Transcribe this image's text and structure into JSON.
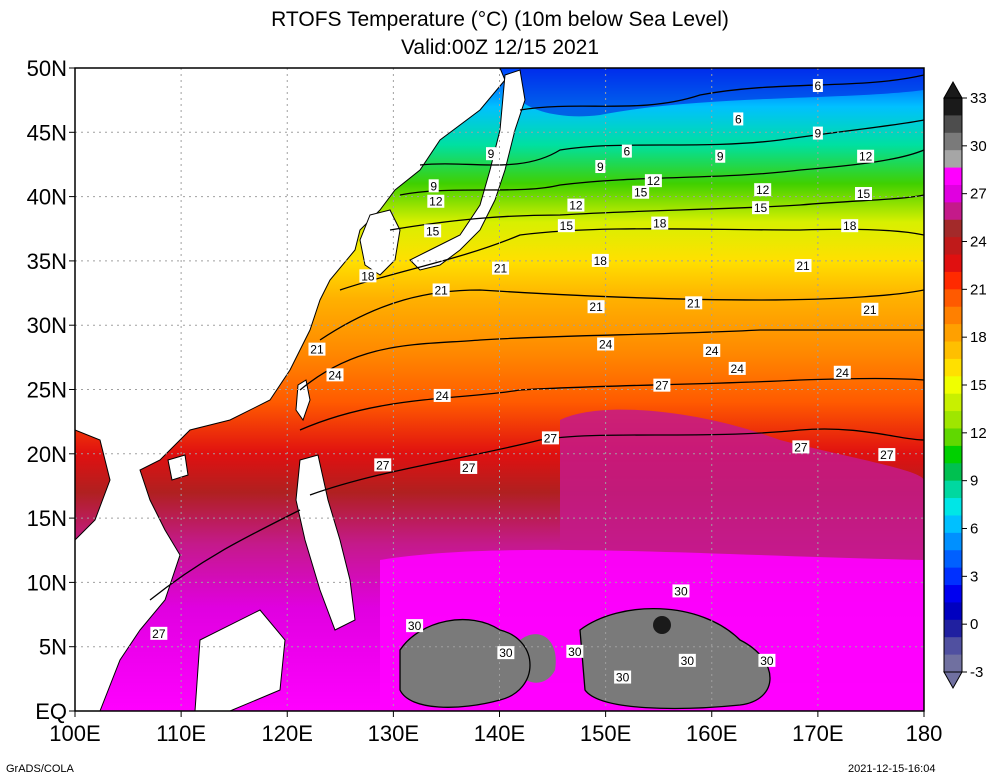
{
  "title": "RTOFS Temperature (°C) (10m below Sea Level)",
  "subtitle": "Valid:00Z 12/15 2021",
  "footer_left": "GrADS/COLA",
  "footer_right": "2021-12-15-16:04",
  "map": {
    "lon_range": [
      100,
      180
    ],
    "lat_range": [
      0,
      50
    ],
    "lon_ticks": [
      "100E",
      "110E",
      "120E",
      "130E",
      "140E",
      "150E",
      "160E",
      "170E",
      "180"
    ],
    "lat_ticks": [
      "EQ",
      "5N",
      "10N",
      "15N",
      "20N",
      "25N",
      "30N",
      "35N",
      "40N",
      "45N",
      "50N"
    ],
    "grid": true
  },
  "colorbar": {
    "labels": [
      "33",
      "30",
      "27",
      "24",
      "21",
      "18",
      "15",
      "12",
      "9",
      "6",
      "3",
      "0",
      "-3"
    ],
    "colors": [
      "#1a1a1a",
      "#4d4d4d",
      "#7a7a7a",
      "#a6a6a6",
      "#ff00ff",
      "#e000e0",
      "#c41a8a",
      "#a32a2a",
      "#c01a1a",
      "#e01010",
      "#ff2a00",
      "#ff5a00",
      "#ff8000",
      "#ffa000",
      "#ffbf00",
      "#ffe000",
      "#f0ff00",
      "#c8f000",
      "#9fe600",
      "#60d800",
      "#00d000",
      "#00c050",
      "#00d8a0",
      "#00e6e6",
      "#00c0ff",
      "#0090ff",
      "#0060ff",
      "#0030ff",
      "#0000f0",
      "#0000c0",
      "#2020a0",
      "#5050a0",
      "#7070a0"
    ]
  },
  "contour_labels": [
    {
      "text": "6",
      "lon": 170,
      "lat": 48.6
    },
    {
      "text": "6",
      "lon": 162.5,
      "lat": 46
    },
    {
      "text": "6",
      "lon": 152,
      "lat": 43.5
    },
    {
      "text": "9",
      "lon": 170,
      "lat": 44.9
    },
    {
      "text": "9",
      "lon": 160.8,
      "lat": 43.1
    },
    {
      "text": "9",
      "lon": 149.5,
      "lat": 42.3
    },
    {
      "text": "9",
      "lon": 139.2,
      "lat": 43.3
    },
    {
      "text": "9",
      "lon": 133.8,
      "lat": 40.8
    },
    {
      "text": "12",
      "lon": 174.5,
      "lat": 43.1
    },
    {
      "text": "12",
      "lon": 164.8,
      "lat": 40.5
    },
    {
      "text": "12",
      "lon": 154.5,
      "lat": 41.2
    },
    {
      "text": "12",
      "lon": 147.2,
      "lat": 39.3
    },
    {
      "text": "12",
      "lon": 134,
      "lat": 39.6
    },
    {
      "text": "15",
      "lon": 174.3,
      "lat": 40.2
    },
    {
      "text": "15",
      "lon": 164.6,
      "lat": 39.1
    },
    {
      "text": "15",
      "lon": 153.3,
      "lat": 40.3
    },
    {
      "text": "15",
      "lon": 146.3,
      "lat": 37.7
    },
    {
      "text": "15",
      "lon": 133.7,
      "lat": 37.3
    },
    {
      "text": "18",
      "lon": 173,
      "lat": 37.7
    },
    {
      "text": "18",
      "lon": 155.1,
      "lat": 37.9
    },
    {
      "text": "18",
      "lon": 149.5,
      "lat": 35
    },
    {
      "text": "18",
      "lon": 127.6,
      "lat": 33.8
    },
    {
      "text": "21",
      "lon": 168.6,
      "lat": 34.6
    },
    {
      "text": "21",
      "lon": 174.9,
      "lat": 31.2
    },
    {
      "text": "21",
      "lon": 158.3,
      "lat": 31.7
    },
    {
      "text": "21",
      "lon": 149.1,
      "lat": 31.4
    },
    {
      "text": "21",
      "lon": 140.1,
      "lat": 34.4
    },
    {
      "text": "21",
      "lon": 134.5,
      "lat": 32.7
    },
    {
      "text": "21",
      "lon": 122.8,
      "lat": 28.1
    },
    {
      "text": "24",
      "lon": 150,
      "lat": 28.5
    },
    {
      "text": "24",
      "lon": 160,
      "lat": 28
    },
    {
      "text": "24",
      "lon": 162.4,
      "lat": 26.6
    },
    {
      "text": "24",
      "lon": 172.3,
      "lat": 26.3
    },
    {
      "text": "24",
      "lon": 134.6,
      "lat": 24.5
    },
    {
      "text": "24",
      "lon": 124.5,
      "lat": 26.1
    },
    {
      "text": "27",
      "lon": 155.3,
      "lat": 25.3
    },
    {
      "text": "27",
      "lon": 144.8,
      "lat": 21.2
    },
    {
      "text": "27",
      "lon": 168.4,
      "lat": 20.5
    },
    {
      "text": "27",
      "lon": 176.5,
      "lat": 19.9
    },
    {
      "text": "27",
      "lon": 137.1,
      "lat": 18.9
    },
    {
      "text": "27",
      "lon": 129,
      "lat": 19.1
    },
    {
      "text": "27",
      "lon": 107.9,
      "lat": 6
    },
    {
      "text": "30",
      "lon": 157.1,
      "lat": 9.3
    },
    {
      "text": "30",
      "lon": 132,
      "lat": 6.6
    },
    {
      "text": "30",
      "lon": 147.1,
      "lat": 4.6
    },
    {
      "text": "30",
      "lon": 140.6,
      "lat": 4.5
    },
    {
      "text": "30",
      "lon": 157.7,
      "lat": 3.9
    },
    {
      "text": "30",
      "lon": 165.2,
      "lat": 3.9
    },
    {
      "text": "30",
      "lon": 151.6,
      "lat": 2.6
    }
  ]
}
